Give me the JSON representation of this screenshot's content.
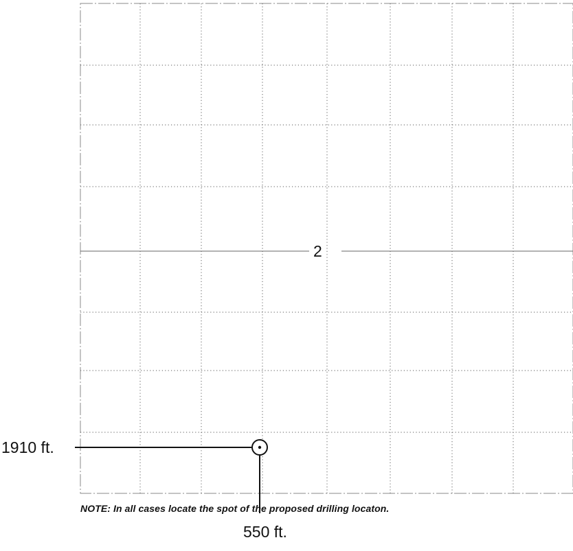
{
  "plat": {
    "section_number": "2",
    "ns_distance_label": "1910 ft.",
    "ew_distance_label": "550 ft.",
    "note": "NOTE: In all cases locate the spot of the proposed drilling locaton.",
    "well_spot_symbol": "well-location-circle-icon"
  }
}
